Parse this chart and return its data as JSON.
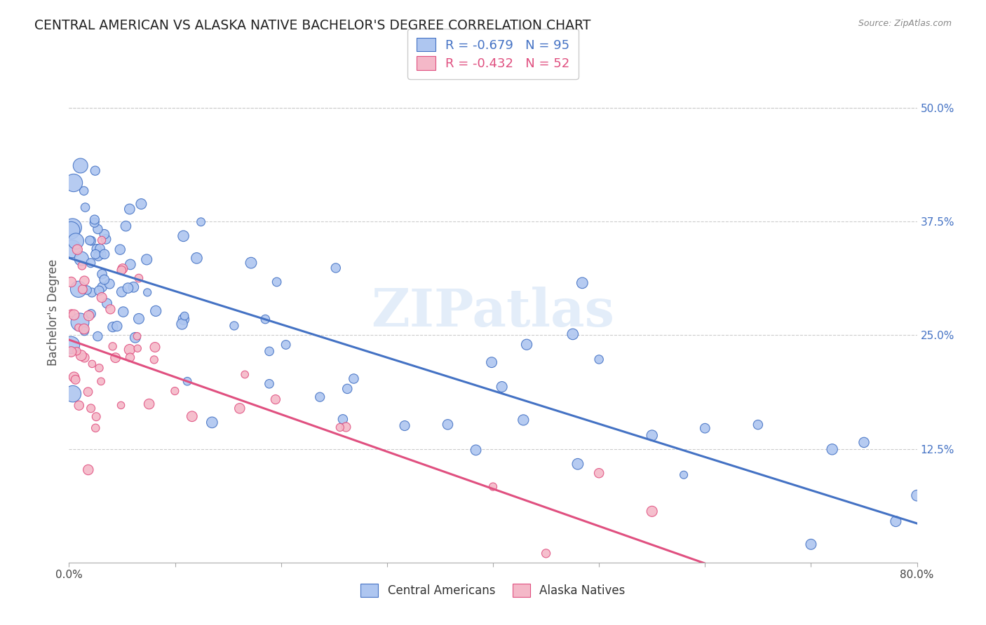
{
  "title": "CENTRAL AMERICAN VS ALASKA NATIVE BACHELOR'S DEGREE CORRELATION CHART",
  "source": "Source: ZipAtlas.com",
  "ylabel": "Bachelor's Degree",
  "watermark": "ZIPatlas",
  "blue_color": "#4472C4",
  "pink_color": "#E05080",
  "scatter_blue": "#aec6f0",
  "scatter_pink": "#f4b8c8",
  "right_axis_color": "#4472C4",
  "ytick_labels_right": [
    "50.0%",
    "37.5%",
    "25.0%",
    "12.5%"
  ],
  "ytick_values_right": [
    0.5,
    0.375,
    0.25,
    0.125
  ],
  "xlim": [
    0.0,
    0.8
  ],
  "ylim": [
    0.0,
    0.55
  ],
  "blue_intercept": 0.335,
  "blue_slope": -0.365,
  "pink_intercept": 0.245,
  "pink_slope": -0.41,
  "legend_R_blue": "R = -0.679",
  "legend_N_blue": "N = 95",
  "legend_R_pink": "R = -0.432",
  "legend_N_pink": "N = 52",
  "legend_label_blue": "Central Americans",
  "legend_label_pink": "Alaska Natives"
}
